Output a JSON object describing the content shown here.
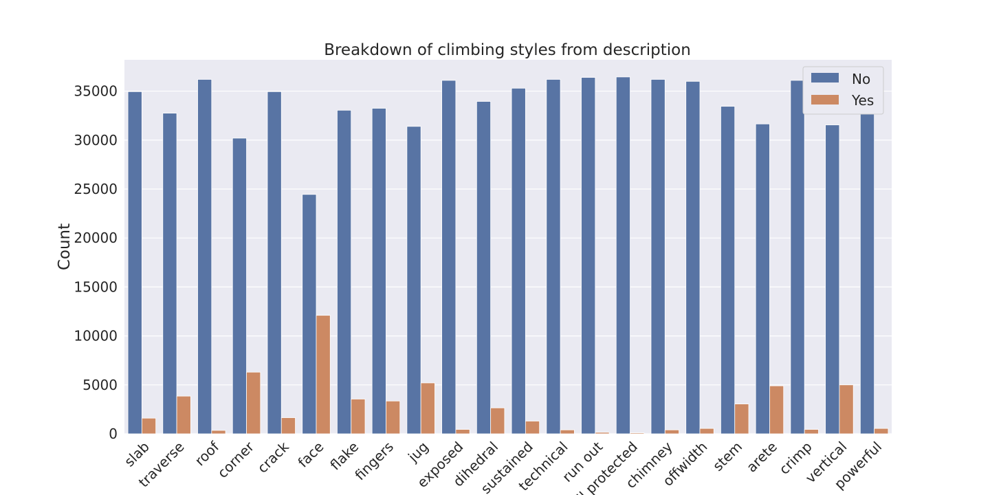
{
  "chart_data": {
    "type": "bar",
    "title": "Breakdown of climbing styles from description",
    "xlabel": "",
    "ylabel": "Count",
    "ylim": [
      0,
      38200
    ],
    "yticks": [
      0,
      5000,
      10000,
      15000,
      20000,
      25000,
      30000,
      35000
    ],
    "grid": true,
    "legend_placement": "top-right",
    "categories": [
      "slab",
      "traverse",
      "roof",
      "corner",
      "crack",
      "face",
      "flake",
      "fingers",
      "jug",
      "exposed",
      "dihedral",
      "sustained",
      "technical",
      "run out",
      "well protected",
      "chimney",
      "offwidth",
      "stem",
      "arete",
      "crimp",
      "vertical",
      "powerful"
    ],
    "series": [
      {
        "name": "No",
        "color": "#5874a4",
        "values": [
          34950,
          32750,
          36200,
          30200,
          34950,
          24450,
          33050,
          33250,
          31400,
          36100,
          33950,
          35300,
          36200,
          36400,
          36450,
          36200,
          36000,
          33450,
          31650,
          36100,
          31550,
          36000
        ]
      },
      {
        "name": "Yes",
        "color": "#cc8963",
        "values": [
          1600,
          3850,
          350,
          6300,
          1650,
          12100,
          3550,
          3350,
          5200,
          450,
          2650,
          1300,
          400,
          150,
          100,
          400,
          550,
          3050,
          4900,
          450,
          5000,
          550
        ]
      }
    ]
  }
}
